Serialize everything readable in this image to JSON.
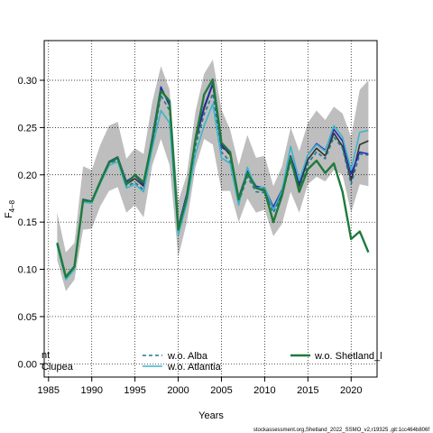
{
  "chart_data": {
    "type": "line",
    "xlabel": "Years",
    "ylabel_main": "F",
    "ylabel_sub": "4–8",
    "xlim": [
      1984.5,
      2023
    ],
    "ylim": [
      -0.014,
      0.342
    ],
    "xticks": [
      1985,
      1990,
      1995,
      2000,
      2005,
      2010,
      2015,
      2020
    ],
    "yticks": [
      0.0,
      0.05,
      0.1,
      0.15,
      0.2,
      0.25,
      0.3
    ],
    "ytick_labels": [
      "0.00",
      "0.05",
      "0.10",
      "0.15",
      "0.20",
      "0.25",
      "0.30"
    ],
    "grid": "dotted",
    "x": [
      1986,
      1987,
      1988,
      1989,
      1990,
      1991,
      1992,
      1993,
      1994,
      1995,
      1996,
      1997,
      1998,
      1999,
      2000,
      2001,
      2002,
      2003,
      2004,
      2005,
      2006,
      2007,
      2008,
      2009,
      2010,
      2011,
      2012,
      2013,
      2014,
      2015,
      2016,
      2017,
      2018,
      2019,
      2020,
      2021,
      2022
    ],
    "confidence_band": {
      "color": "#bebebe",
      "upper": [
        0.16,
        0.118,
        0.128,
        0.209,
        0.205,
        0.232,
        0.252,
        0.256,
        0.217,
        0.228,
        0.222,
        0.277,
        0.315,
        0.29,
        0.172,
        0.2,
        0.267,
        0.307,
        0.322,
        0.269,
        0.248,
        0.21,
        0.242,
        0.218,
        0.22,
        0.188,
        0.209,
        0.25,
        0.225,
        0.255,
        0.268,
        0.258,
        0.272,
        0.265,
        0.24,
        0.29,
        0.3
      ],
      "lower": [
        0.11,
        0.077,
        0.089,
        0.142,
        0.143,
        0.167,
        0.183,
        0.187,
        0.16,
        0.168,
        0.155,
        0.21,
        0.238,
        0.21,
        0.113,
        0.15,
        0.208,
        0.238,
        0.232,
        0.183,
        0.183,
        0.15,
        0.175,
        0.16,
        0.163,
        0.135,
        0.148,
        0.182,
        0.16,
        0.19,
        0.198,
        0.193,
        0.205,
        0.2,
        0.16,
        0.19,
        0.188
      ]
    },
    "series": [
      {
        "name": "",
        "color": "#303030",
        "width": 1.6,
        "dash": "",
        "values": [
          0.127,
          0.091,
          0.102,
          0.174,
          0.172,
          0.193,
          0.213,
          0.218,
          0.19,
          0.196,
          0.188,
          0.237,
          0.292,
          0.275,
          0.143,
          0.178,
          0.236,
          0.27,
          0.296,
          0.232,
          0.221,
          0.174,
          0.202,
          0.186,
          0.184,
          0.163,
          0.181,
          0.218,
          0.188,
          0.216,
          0.228,
          0.22,
          0.244,
          0.23,
          0.194,
          0.232,
          0.236
        ]
      },
      {
        "name": "Clupea",
        "color": "#2828b4",
        "width": 1.6,
        "dash": "",
        "values": [
          0.127,
          0.091,
          0.102,
          0.174,
          0.172,
          0.194,
          0.214,
          0.219,
          0.193,
          0.199,
          0.19,
          0.24,
          0.293,
          0.273,
          0.145,
          0.18,
          0.238,
          0.272,
          0.297,
          0.229,
          0.224,
          0.176,
          0.204,
          0.188,
          0.186,
          0.166,
          0.184,
          0.22,
          0.192,
          0.221,
          0.233,
          0.226,
          0.248,
          0.236,
          0.201,
          0.224,
          0.222
        ]
      },
      {
        "name": "w.o. Alba",
        "color": "#1e7896",
        "width": 1.6,
        "dash": "4,3",
        "values": [
          0.126,
          0.09,
          0.101,
          0.172,
          0.171,
          0.192,
          0.212,
          0.216,
          0.188,
          0.192,
          0.184,
          0.232,
          0.284,
          0.268,
          0.139,
          0.174,
          0.23,
          0.264,
          0.286,
          0.224,
          0.214,
          0.17,
          0.198,
          0.182,
          0.181,
          0.16,
          0.178,
          0.214,
          0.185,
          0.212,
          0.224,
          0.217,
          0.24,
          0.228,
          0.19,
          0.222,
          0.221
        ]
      },
      {
        "name": "w.o. Atlantia",
        "color": "#3cb4c8",
        "width": 1.6,
        "dash": "",
        "values": [
          0.125,
          0.089,
          0.1,
          0.171,
          0.17,
          0.191,
          0.21,
          0.214,
          0.186,
          0.19,
          0.182,
          0.228,
          0.268,
          0.255,
          0.136,
          0.17,
          0.222,
          0.252,
          0.275,
          0.218,
          0.212,
          0.168,
          0.208,
          0.186,
          0.187,
          0.163,
          0.183,
          0.23,
          0.194,
          0.221,
          0.232,
          0.225,
          0.252,
          0.24,
          0.205,
          0.245,
          0.247
        ]
      },
      {
        "name": "w.o. Shetland_l",
        "color": "#1e7a3c",
        "width": 2.4,
        "dash": "",
        "values": [
          0.128,
          0.092,
          0.103,
          0.173,
          0.172,
          0.193,
          0.213,
          0.218,
          0.19,
          0.2,
          0.192,
          0.236,
          0.289,
          0.278,
          0.142,
          0.176,
          0.238,
          0.285,
          0.301,
          0.234,
          0.224,
          0.174,
          0.202,
          0.186,
          0.183,
          0.15,
          0.178,
          0.218,
          0.182,
          0.206,
          0.215,
          0.202,
          0.212,
          0.182,
          0.132,
          0.14,
          0.118
        ]
      }
    ],
    "legend": {
      "placement": "bottom",
      "entries": [
        {
          "label": "nt",
          "series_index": 0,
          "show_line": false
        },
        {
          "label": "Clupea",
          "series_index": 1,
          "show_line": false
        },
        {
          "label": "w.o. Alba",
          "series_index": 2,
          "show_line": true
        },
        {
          "label": "w.o. Atlantia",
          "series_index": 3,
          "show_line": true
        },
        {
          "label": "w.o. Shetland_l",
          "series_index": 4,
          "show_line": true
        }
      ]
    }
  },
  "caption": "stockassessment.org,Shetland_2022_SSMO_v2,r19325  ,git:1cc464b806f"
}
